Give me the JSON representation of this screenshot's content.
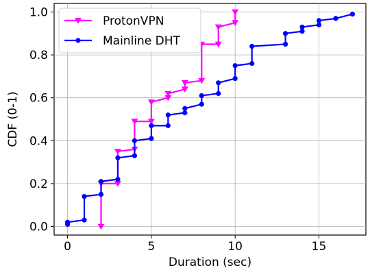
{
  "chart_data": {
    "type": "line",
    "title": "",
    "xlabel": "Duration (sec)",
    "ylabel": "CDF (0-1)",
    "xlim": [
      -0.8,
      17.8
    ],
    "ylim": [
      -0.04,
      1.04
    ],
    "xticks": [
      0,
      5,
      10,
      15
    ],
    "xtick_labels": [
      "0",
      "5",
      "10",
      "15"
    ],
    "yticks": [
      0.0,
      0.2,
      0.4,
      0.6,
      0.8,
      1.0
    ],
    "ytick_labels": [
      "0.0",
      "0.2",
      "0.4",
      "0.6",
      "0.8",
      "1.0"
    ],
    "grid": true,
    "legend_position": "top-left",
    "series": [
      {
        "name": "ProtonVPN",
        "color": "#ff00ff",
        "marker": "triangle-down",
        "points": [
          [
            2,
            0.0
          ],
          [
            2,
            0.2
          ],
          [
            3,
            0.2
          ],
          [
            3,
            0.35
          ],
          [
            4,
            0.36
          ],
          [
            4,
            0.49
          ],
          [
            5,
            0.49
          ],
          [
            5,
            0.58
          ],
          [
            6,
            0.6
          ],
          [
            6,
            0.62
          ],
          [
            7,
            0.64
          ],
          [
            7,
            0.67
          ],
          [
            8,
            0.68
          ],
          [
            8,
            0.85
          ],
          [
            9,
            0.85
          ],
          [
            9,
            0.93
          ],
          [
            10,
            0.95
          ],
          [
            10,
            1.0
          ]
        ]
      },
      {
        "name": "Mainline DHT",
        "color": "#0000ff",
        "marker": "circle",
        "points": [
          [
            0,
            0.01
          ],
          [
            0,
            0.02
          ],
          [
            1,
            0.03
          ],
          [
            1,
            0.14
          ],
          [
            2,
            0.15
          ],
          [
            2,
            0.21
          ],
          [
            3,
            0.22
          ],
          [
            3,
            0.32
          ],
          [
            4,
            0.33
          ],
          [
            4,
            0.4
          ],
          [
            5,
            0.41
          ],
          [
            5,
            0.47
          ],
          [
            6,
            0.47
          ],
          [
            6,
            0.52
          ],
          [
            7,
            0.53
          ],
          [
            7,
            0.55
          ],
          [
            8,
            0.57
          ],
          [
            8,
            0.61
          ],
          [
            9,
            0.62
          ],
          [
            9,
            0.67
          ],
          [
            10,
            0.69
          ],
          [
            10,
            0.75
          ],
          [
            11,
            0.76
          ],
          [
            11,
            0.84
          ],
          [
            13,
            0.85
          ],
          [
            13,
            0.9
          ],
          [
            14,
            0.91
          ],
          [
            14,
            0.93
          ],
          [
            15,
            0.94
          ],
          [
            15,
            0.96
          ],
          [
            16,
            0.97
          ],
          [
            17,
            0.99
          ]
        ]
      }
    ]
  }
}
